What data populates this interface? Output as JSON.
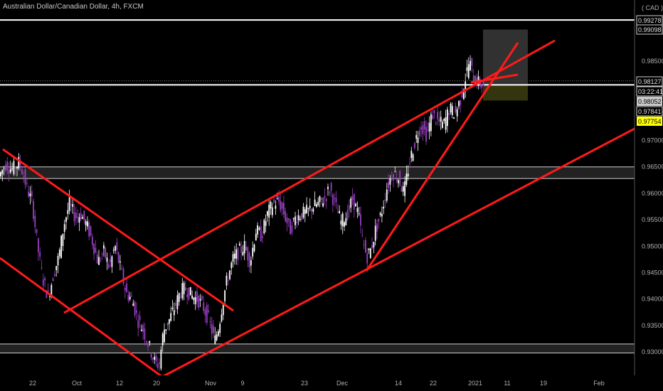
{
  "header": {
    "title": "Australian Dollar/Canadian Dollar, 4h, FXCM"
  },
  "colors": {
    "background": "#000000",
    "trendline": "#ff1a1a",
    "level": "#ffffff",
    "up_candle": "#ffffff",
    "down_candle": "#9a3fc4",
    "zone": "#222222",
    "target_box": "#3a3a3a",
    "stop_box": "#3a3a10"
  },
  "price_axis": {
    "currency": "( CAD )",
    "ticks": [
      "0.98500",
      "0.97500",
      "0.97000",
      "0.96500",
      "0.96000",
      "0.95500",
      "0.95000",
      "0.94500",
      "0.94000",
      "0.93500",
      "0.93000"
    ],
    "tags": [
      {
        "label": "0.99278",
        "style": "box"
      },
      {
        "label": "0.99098",
        "style": "box"
      },
      {
        "label": "0.98127",
        "style": "box"
      },
      {
        "label": "03:22:41",
        "style": "box"
      },
      {
        "label": "0.98052",
        "style": "gray"
      },
      {
        "label": "0.97841",
        "style": "box"
      },
      {
        "label": "0.97754",
        "style": "yellow"
      }
    ]
  },
  "time_axis": {
    "ticks": [
      "22",
      "Oct",
      "12",
      "20",
      "Nov",
      "9",
      "23",
      "Dec",
      "14",
      "22",
      "2021",
      "11",
      "19",
      "Feb"
    ]
  },
  "chart_data": {
    "type": "candlestick",
    "symbol": "AUDCAD",
    "timeframe": "4h",
    "ylim": [
      0.928,
      0.995
    ],
    "price_path": [
      [
        0,
        0.963
      ],
      [
        10,
        0.9655
      ],
      [
        20,
        0.9645
      ],
      [
        30,
        0.966
      ],
      [
        40,
        0.961
      ],
      [
        48,
        0.958
      ],
      [
        55,
        0.95
      ],
      [
        62,
        0.944
      ],
      [
        70,
        0.9405
      ],
      [
        78,
        0.945
      ],
      [
        85,
        0.948
      ],
      [
        92,
        0.954
      ],
      [
        100,
        0.958
      ],
      [
        108,
        0.9555
      ],
      [
        116,
        0.956
      ],
      [
        124,
        0.954
      ],
      [
        132,
        0.951
      ],
      [
        140,
        0.947
      ],
      [
        148,
        0.949
      ],
      [
        156,
        0.946
      ],
      [
        164,
        0.95
      ],
      [
        172,
        0.9455
      ],
      [
        180,
        0.941
      ],
      [
        188,
        0.94
      ],
      [
        196,
        0.936
      ],
      [
        204,
        0.934
      ],
      [
        212,
        0.931
      ],
      [
        220,
        0.928
      ],
      [
        226,
        0.9275
      ],
      [
        232,
        0.934
      ],
      [
        240,
        0.936
      ],
      [
        248,
        0.9385
      ],
      [
        256,
        0.9415
      ],
      [
        264,
        0.942
      ],
      [
        272,
        0.9405
      ],
      [
        280,
        0.94
      ],
      [
        288,
        0.9385
      ],
      [
        296,
        0.936
      ],
      [
        304,
        0.932
      ],
      [
        310,
        0.935
      ],
      [
        316,
        0.94
      ],
      [
        322,
        0.944
      ],
      [
        330,
        0.9475
      ],
      [
        338,
        0.949
      ],
      [
        346,
        0.95
      ],
      [
        354,
        0.947
      ],
      [
        362,
        0.953
      ],
      [
        370,
        0.952
      ],
      [
        378,
        0.956
      ],
      [
        386,
        0.958
      ],
      [
        394,
        0.9585
      ],
      [
        402,
        0.956
      ],
      [
        410,
        0.953
      ],
      [
        418,
        0.9555
      ],
      [
        426,
        0.956
      ],
      [
        434,
        0.9565
      ],
      [
        442,
        0.9575
      ],
      [
        450,
        0.958
      ],
      [
        458,
        0.959
      ],
      [
        466,
        0.961
      ],
      [
        474,
        0.9575
      ],
      [
        482,
        0.9545
      ],
      [
        490,
        0.956
      ],
      [
        498,
        0.959
      ],
      [
        506,
        0.956
      ],
      [
        512,
        0.951
      ],
      [
        518,
        0.948
      ],
      [
        524,
        0.9495
      ],
      [
        530,
        0.953
      ],
      [
        538,
        0.956
      ],
      [
        546,
        0.961
      ],
      [
        554,
        0.964
      ],
      [
        562,
        0.963
      ],
      [
        570,
        0.96
      ],
      [
        578,
        0.966
      ],
      [
        586,
        0.97
      ],
      [
        594,
        0.973
      ],
      [
        602,
        0.971
      ],
      [
        610,
        0.975
      ],
      [
        618,
        0.9735
      ],
      [
        626,
        0.973
      ],
      [
        634,
        0.976
      ],
      [
        642,
        0.975
      ],
      [
        650,
        0.978
      ],
      [
        656,
        0.9815
      ],
      [
        662,
        0.985
      ],
      [
        668,
        0.982
      ],
      [
        674,
        0.981
      ],
      [
        680,
        0.9805
      ]
    ],
    "horizontal_levels": [
      0.99278,
      0.98052
    ],
    "zones": [
      [
        0.9628,
        0.965
      ],
      [
        0.9298,
        0.9315
      ]
    ],
    "position": {
      "entry": 0.98052,
      "target": 0.99098,
      "stop": 0.97754,
      "current": 0.98127
    }
  }
}
